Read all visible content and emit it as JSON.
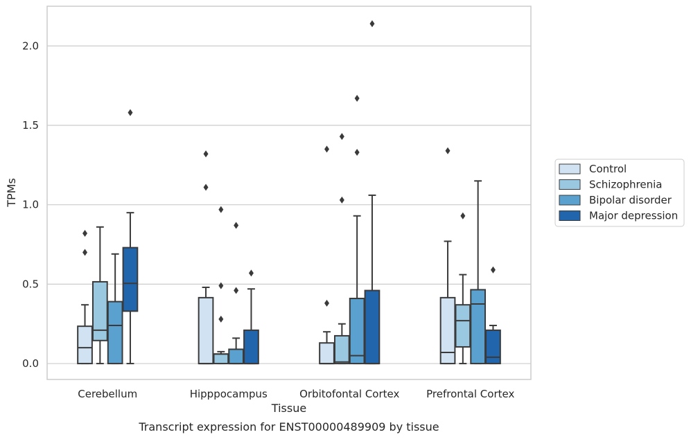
{
  "caption": "Transcript expression for ENST00000489909 by tissue",
  "colors": {
    "grid": "#cccccc",
    "frame": "#cccccc",
    "stroke": "#3a3a3a",
    "series": [
      "#d1e2f2",
      "#9ac8e0",
      "#5aa1cf",
      "#2166ac"
    ]
  },
  "chart_data": {
    "type": "box",
    "xlabel": "Tissue",
    "ylabel": "TPMs",
    "ylim": [
      -0.1,
      2.25
    ],
    "yticks": [
      0.0,
      0.5,
      1.0,
      1.5,
      2.0
    ],
    "ytick_labels": [
      "0.0",
      "0.5",
      "1.0",
      "1.5",
      "2.0"
    ],
    "grid": "horizontal",
    "legend_position": "right",
    "categories": [
      "Cerebellum",
      "Hipppocampus",
      "Orbitofontal Cortex",
      "Prefrontal Cortex"
    ],
    "series": [
      {
        "name": "Control",
        "boxes": [
          {
            "q1": 0.0,
            "median": 0.1,
            "q3": 0.235,
            "whislo": 0.0,
            "whishi": 0.37,
            "fliers": [
              0.7,
              0.82
            ]
          },
          {
            "q1": 0.0,
            "median": 0.0,
            "q3": 0.415,
            "whislo": 0.0,
            "whishi": 0.48,
            "fliers": [
              1.11,
              1.32
            ]
          },
          {
            "q1": 0.0,
            "median": 0.0,
            "q3": 0.13,
            "whislo": 0.0,
            "whishi": 0.2,
            "fliers": [
              0.38,
              1.35
            ]
          },
          {
            "q1": 0.0,
            "median": 0.07,
            "q3": 0.415,
            "whislo": 0.0,
            "whishi": 0.77,
            "fliers": [
              1.34
            ]
          }
        ]
      },
      {
        "name": "Schizophrenia",
        "boxes": [
          {
            "q1": 0.145,
            "median": 0.21,
            "q3": 0.515,
            "whislo": 0.0,
            "whishi": 0.86,
            "fliers": []
          },
          {
            "q1": 0.0,
            "median": 0.06,
            "q3": 0.06,
            "whislo": 0.0,
            "whishi": 0.075,
            "fliers": [
              0.28,
              0.49,
              0.97
            ]
          },
          {
            "q1": 0.0,
            "median": 0.01,
            "q3": 0.175,
            "whislo": 0.0,
            "whishi": 0.25,
            "fliers": [
              1.03,
              1.43
            ]
          },
          {
            "q1": 0.105,
            "median": 0.27,
            "q3": 0.37,
            "whislo": 0.0,
            "whishi": 0.56,
            "fliers": [
              0.93
            ]
          }
        ]
      },
      {
        "name": "Bipolar disorder",
        "boxes": [
          {
            "q1": 0.0,
            "median": 0.24,
            "q3": 0.39,
            "whislo": 0.0,
            "whishi": 0.69,
            "fliers": []
          },
          {
            "q1": 0.0,
            "median": 0.0,
            "q3": 0.09,
            "whislo": 0.0,
            "whishi": 0.16,
            "fliers": [
              0.46,
              0.87
            ]
          },
          {
            "q1": 0.0,
            "median": 0.05,
            "q3": 0.41,
            "whislo": 0.0,
            "whishi": 0.93,
            "fliers": [
              1.33,
              1.67
            ]
          },
          {
            "q1": 0.0,
            "median": 0.375,
            "q3": 0.465,
            "whislo": 0.0,
            "whishi": 1.15,
            "fliers": []
          }
        ]
      },
      {
        "name": "Major depression",
        "boxes": [
          {
            "q1": 0.33,
            "median": 0.505,
            "q3": 0.73,
            "whislo": 0.0,
            "whishi": 0.95,
            "fliers": [
              1.58
            ]
          },
          {
            "q1": 0.0,
            "median": 0.0,
            "q3": 0.21,
            "whislo": 0.0,
            "whishi": 0.47,
            "fliers": [
              0.57
            ]
          },
          {
            "q1": 0.0,
            "median": 0.0,
            "q3": 0.46,
            "whislo": 0.0,
            "whishi": 1.06,
            "fliers": [
              2.14
            ]
          },
          {
            "q1": 0.0,
            "median": 0.04,
            "q3": 0.21,
            "whislo": 0.0,
            "whishi": 0.24,
            "fliers": [
              0.59
            ]
          }
        ]
      }
    ]
  }
}
